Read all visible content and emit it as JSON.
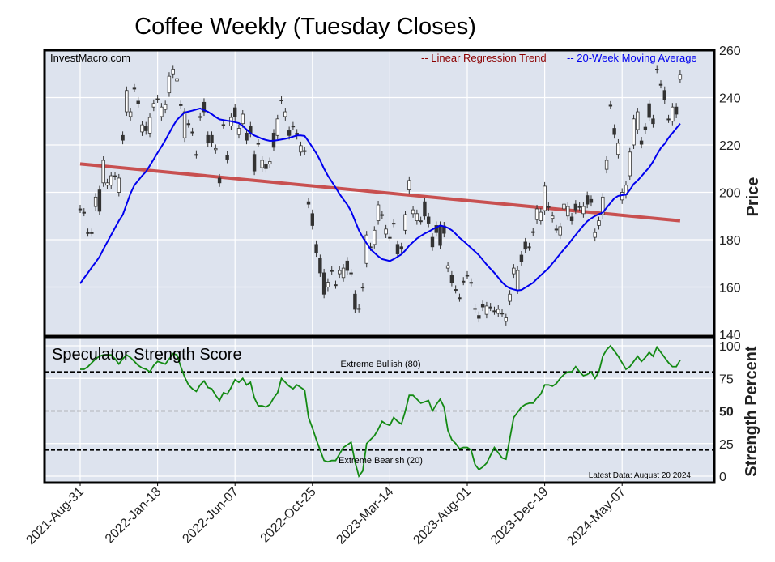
{
  "chart_data": [
    {
      "type": "candlestick",
      "title": "Coffee Weekly (Tuesday Closes)",
      "watermark": "InvestMacro.com",
      "ylabel": "Price",
      "ylim": [
        140,
        260
      ],
      "yticks": [
        140,
        160,
        180,
        200,
        220,
        240,
        260
      ],
      "grid": true,
      "x_frequency": "weekly (Tuesday closes)",
      "x_start": "2021-08-31",
      "x_end": "2024-08-20",
      "xtick_labels": [
        "2021-Aug-31",
        "2022-Jan-18",
        "2022-Jun-07",
        "2022-Oct-25",
        "2023-Mar-14",
        "2023-Aug-01",
        "2023-Dec-19",
        "2024-May-07"
      ],
      "legend_position": "top-right",
      "legend": [
        {
          "label": "-- Linear Regression Trend",
          "color": "#8b0000"
        },
        {
          "label": "-- 20-Week Moving Average",
          "color": "#0000ee"
        }
      ],
      "colors": {
        "up_body": "#ffffff",
        "down_body": "#333333",
        "regression": "#c85050",
        "moving_average": "#0000ee",
        "background": "#dde3ee"
      },
      "candles_open_close": [
        [
          193,
          193
        ],
        [
          191.6,
          191.6
        ],
        [
          183,
          183
        ],
        [
          183,
          183
        ],
        [
          194,
          198
        ],
        [
          201,
          192
        ],
        [
          204,
          213.5
        ],
        [
          203,
          204
        ],
        [
          203,
          207
        ],
        [
          207,
          207
        ],
        [
          200,
          206
        ],
        [
          224,
          222
        ],
        [
          234,
          243
        ],
        [
          232,
          234
        ],
        [
          244,
          244
        ],
        [
          238.5,
          237.5
        ],
        [
          225.5,
          228.5
        ],
        [
          228,
          226
        ],
        [
          225,
          231.6
        ],
        [
          236,
          237.5
        ],
        [
          239.5,
          239.5
        ],
        [
          232,
          236
        ],
        [
          235,
          237
        ],
        [
          242,
          249
        ],
        [
          250,
          252
        ],
        [
          247,
          248
        ],
        [
          237,
          237
        ],
        [
          223,
          234
        ],
        [
          229,
          229
        ],
        [
          225.5,
          225.5
        ],
        [
          216,
          216
        ],
        [
          232,
          232
        ],
        [
          238,
          234
        ],
        [
          224,
          221
        ],
        [
          224,
          221
        ],
        [
          218,
          218.5
        ],
        [
          206,
          204
        ],
        [
          228.6,
          228.6
        ],
        [
          215.6,
          214
        ],
        [
          228,
          231.6
        ],
        [
          235.7,
          232
        ],
        [
          224.4,
          227
        ],
        [
          229,
          233
        ],
        [
          225,
          222
        ],
        [
          228,
          225
        ],
        [
          216,
          209
        ],
        [
          220.7,
          220.7
        ],
        [
          210.4,
          213.5
        ],
        [
          212,
          210
        ],
        [
          212,
          213
        ],
        [
          225,
          219
        ],
        [
          224,
          231
        ],
        [
          239,
          239
        ],
        [
          232,
          234
        ],
        [
          226,
          224
        ],
        [
          228,
          228
        ],
        [
          225,
          224
        ],
        [
          217,
          219.7
        ],
        [
          217.6,
          217.6
        ],
        [
          196,
          195
        ],
        [
          191,
          186
        ],
        [
          178,
          174.5
        ],
        [
          172,
          166
        ],
        [
          166,
          157
        ],
        [
          160,
          162
        ],
        [
          167,
          167
        ],
        [
          161,
          161
        ],
        [
          165.6,
          167
        ],
        [
          164,
          168
        ],
        [
          171,
          167
        ],
        [
          166,
          166
        ],
        [
          157,
          150.6
        ],
        [
          151,
          151
        ],
        [
          160,
          160
        ],
        [
          170,
          182
        ],
        [
          177,
          177
        ],
        [
          178,
          184
        ],
        [
          188,
          194.7
        ],
        [
          190.6,
          190.6
        ],
        [
          182.4,
          184.5
        ],
        [
          181,
          181
        ],
        [
          187,
          187
        ],
        [
          178,
          174
        ],
        [
          177,
          176
        ],
        [
          184,
          190.6
        ],
        [
          201,
          205
        ],
        [
          191,
          192.6
        ],
        [
          188,
          191
        ],
        [
          188,
          188
        ],
        [
          196,
          190
        ],
        [
          189.6,
          187
        ],
        [
          181,
          177
        ],
        [
          186,
          183
        ],
        [
          186,
          177.6
        ],
        [
          185.8,
          182.7
        ],
        [
          168,
          169
        ],
        [
          165,
          162
        ],
        [
          159,
          159
        ],
        [
          155.5,
          155.5
        ],
        [
          162.5,
          162.5
        ],
        [
          165,
          165
        ],
        [
          162,
          162
        ],
        [
          151,
          150.6
        ],
        [
          148,
          146.8
        ],
        [
          152.6,
          151.6
        ],
        [
          148.5,
          152
        ],
        [
          151.6,
          151.6
        ],
        [
          150,
          150
        ],
        [
          148.9,
          150.6
        ],
        [
          149,
          149
        ],
        [
          145.5,
          147
        ],
        [
          154,
          157
        ],
        [
          165.6,
          168
        ],
        [
          158.8,
          167
        ],
        [
          173.5,
          170.8
        ],
        [
          179,
          176
        ],
        [
          177,
          177
        ],
        [
          183.4,
          183.4
        ],
        [
          188.5,
          193
        ],
        [
          188,
          191.6
        ],
        [
          192.3,
          202.6
        ],
        [
          194,
          194
        ],
        [
          189,
          190
        ],
        [
          184.5,
          184.5
        ],
        [
          182,
          185.5
        ],
        [
          193,
          195
        ],
        [
          190,
          194
        ],
        [
          189.6,
          188
        ],
        [
          195,
          192.6
        ],
        [
          194,
          194
        ],
        [
          191,
          194
        ],
        [
          198.6,
          195
        ],
        [
          197,
          195.7
        ],
        [
          181,
          183
        ],
        [
          186,
          188
        ],
        [
          190.6,
          198
        ],
        [
          209.7,
          213.5
        ],
        [
          236.8,
          236.8
        ],
        [
          227,
          224.4
        ],
        [
          216,
          220.7
        ],
        [
          196.8,
          200
        ],
        [
          199,
          203
        ],
        [
          207,
          217
        ],
        [
          220,
          231
        ],
        [
          226.5,
          234
        ],
        [
          221.7,
          220.3
        ],
        [
          227.5,
          226.5
        ],
        [
          237.4,
          231.6
        ],
        [
          231,
          229
        ],
        [
          252,
          252
        ],
        [
          245.6,
          245.6
        ],
        [
          243,
          239
        ],
        [
          231,
          231
        ],
        [
          230,
          236
        ],
        [
          236,
          233
        ],
        [
          247.7,
          249.8
        ]
      ],
      "moving_average_20w": [
        161.5,
        163.8,
        166,
        168.3,
        170.5,
        172.8,
        176,
        179,
        182,
        185,
        188,
        190.5,
        195,
        199.5,
        203,
        205,
        207,
        208.7,
        211.3,
        214,
        216.7,
        219.3,
        222,
        225,
        228,
        230.6,
        232.2,
        233.7,
        234.1,
        234.5,
        235,
        235.4,
        234.7,
        234,
        233,
        231.8,
        230.8,
        230.5,
        230.2,
        230,
        229.6,
        229.2,
        228,
        226.5,
        225,
        224,
        223.3,
        222.6,
        222.1,
        221.7,
        221.8,
        222,
        222.3,
        222.6,
        223,
        223.5,
        224,
        224,
        223.8,
        221.5,
        219,
        216.5,
        213.5,
        210,
        207,
        204.5,
        202,
        199.3,
        197,
        194.8,
        192,
        188,
        184,
        181,
        178.5,
        176,
        174.5,
        173,
        171.8,
        171.4,
        171,
        171.8,
        172.8,
        173.8,
        175.5,
        177.5,
        179,
        180.5,
        181.6,
        182.6,
        183.4,
        184.3,
        185.2,
        186,
        185.6,
        185,
        184,
        182.5,
        180.8,
        179.5,
        178,
        176.5,
        175,
        173.5,
        171.5,
        169.5,
        167.7,
        166,
        164,
        162,
        160.5,
        159.5,
        159,
        158.6,
        158.8,
        159.8,
        160.8,
        161.8,
        163.5,
        165,
        166.5,
        168,
        170,
        172,
        174,
        176,
        177.8,
        180,
        182,
        184,
        186,
        187.8,
        189,
        190,
        190.8,
        191.5,
        193.5,
        195.5,
        197.5,
        198.5,
        198.8,
        199,
        201,
        203.5,
        205,
        206.8,
        208.7,
        210.5,
        213,
        216,
        218.7,
        220.5,
        223,
        225,
        227,
        229
      ],
      "regression_trend": {
        "start": 212,
        "end": 188
      }
    },
    {
      "type": "line",
      "title": "Speculator Strength Score",
      "ylabel": "Strength Percent",
      "ylim": [
        0,
        100
      ],
      "yticks": [
        0,
        25,
        50,
        75,
        100
      ],
      "grid": true,
      "color": "#138a13",
      "reference_lines": [
        {
          "value": 80,
          "label": "Extreme Bullish (80)",
          "color": "#000000"
        },
        {
          "value": 50,
          "label": "",
          "color": "#808080"
        },
        {
          "value": 20,
          "label": "Extreme Bearish (20)",
          "color": "#000000"
        }
      ],
      "note": "Latest Data: August 20 2024",
      "values": [
        82,
        82,
        84,
        87,
        90,
        92,
        93,
        93,
        93,
        90,
        86,
        90,
        93,
        91,
        88,
        85,
        83,
        82,
        80,
        85,
        88,
        87,
        86,
        90,
        94,
        93,
        84,
        76,
        70,
        67,
        65,
        70,
        73,
        68,
        67,
        62,
        58,
        64,
        63,
        68,
        74,
        72,
        75,
        70,
        72,
        60,
        54,
        54,
        53,
        55,
        60,
        64,
        75,
        72,
        69,
        67,
        70,
        68,
        66,
        45,
        37,
        28,
        20,
        12,
        11,
        12,
        12,
        17,
        22,
        24,
        26,
        11,
        0,
        4,
        25,
        28,
        31,
        36,
        42,
        40,
        39,
        45,
        42,
        40,
        50,
        62,
        62,
        59,
        56,
        57,
        58,
        50,
        55,
        59,
        53,
        35,
        28,
        25,
        21,
        22,
        22,
        20,
        9,
        5,
        7,
        10,
        16,
        22,
        18,
        14,
        13,
        29,
        45,
        49,
        53,
        55,
        56,
        56,
        60,
        63,
        70,
        70,
        69,
        71,
        75,
        78,
        80,
        80,
        84,
        80,
        77,
        78,
        80,
        75,
        80,
        92,
        97,
        100,
        96,
        92,
        87,
        82,
        84,
        88,
        92,
        88,
        91,
        95,
        92,
        99,
        95,
        91,
        87,
        84,
        84,
        89
      ]
    }
  ]
}
